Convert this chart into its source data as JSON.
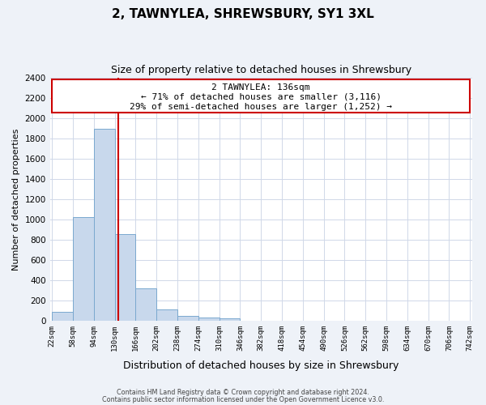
{
  "title": "2, TAWNYLEA, SHREWSBURY, SY1 3XL",
  "subtitle": "Size of property relative to detached houses in Shrewsbury",
  "xlabel": "Distribution of detached houses by size in Shrewsbury",
  "ylabel": "Number of detached properties",
  "bar_edges": [
    22,
    58,
    94,
    130,
    166,
    202,
    238,
    274,
    310,
    346,
    382,
    418,
    454,
    490,
    526,
    562,
    598,
    634,
    670,
    706,
    742
  ],
  "bar_heights": [
    90,
    1020,
    1890,
    860,
    320,
    115,
    50,
    35,
    25,
    0,
    0,
    0,
    0,
    0,
    0,
    0,
    0,
    0,
    0,
    0
  ],
  "bar_color": "#c8d8ec",
  "bar_edgecolor": "#7aa8cf",
  "property_line_x": 136,
  "annotation_title": "2 TAWNYLEA: 136sqm",
  "annotation_line1": "← 71% of detached houses are smaller (3,116)",
  "annotation_line2": "29% of semi-detached houses are larger (1,252) →",
  "annotation_box_color": "#ffffff",
  "annotation_box_edgecolor": "#cc0000",
  "property_line_color": "#cc0000",
  "ylim": [
    0,
    2400
  ],
  "yticks": [
    0,
    200,
    400,
    600,
    800,
    1000,
    1200,
    1400,
    1600,
    1800,
    2000,
    2200,
    2400
  ],
  "footer_line1": "Contains HM Land Registry data © Crown copyright and database right 2024.",
  "footer_line2": "Contains public sector information licensed under the Open Government Licence v3.0.",
  "background_color": "#eef2f8",
  "plot_background_color": "#ffffff",
  "grid_color": "#d0d8e8"
}
